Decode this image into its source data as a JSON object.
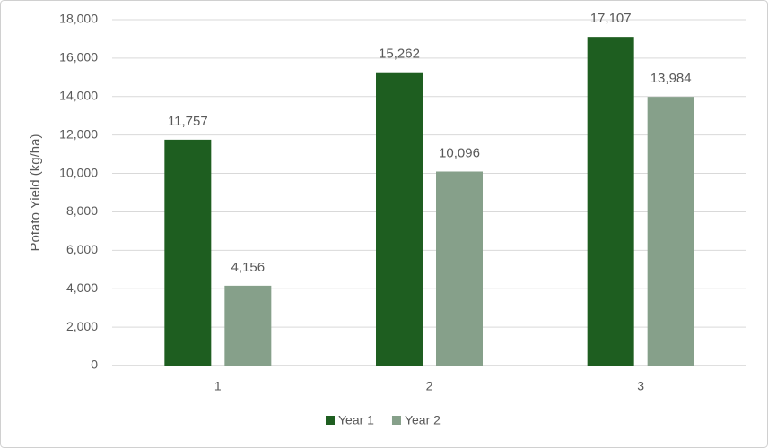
{
  "chart_data": {
    "type": "bar",
    "y_label": "Potato Yield (kg/ha)",
    "categories": [
      "1",
      "2",
      "3"
    ],
    "series": [
      {
        "name": "Year 1",
        "color": "#1e5e20",
        "values": [
          11757,
          15262,
          17107
        ],
        "value_labels": [
          "11,757",
          "15,262",
          "17,107"
        ]
      },
      {
        "name": "Year 2",
        "color": "#86a08a",
        "values": [
          4156,
          10096,
          13984
        ],
        "value_labels": [
          "4,156",
          "10,096",
          "13,984"
        ]
      }
    ],
    "ylim": [
      0,
      18000
    ],
    "yticks": [
      0,
      {
        "value": 2000,
        "label": "2,000"
      },
      {
        "value": 4000,
        "label": "4,000"
      },
      {
        "value": 6000,
        "label": "6,000"
      },
      {
        "value": 8000,
        "label": "8,000"
      },
      {
        "value": 10000,
        "label": "10,000"
      },
      {
        "value": 12000,
        "label": "12,000"
      },
      {
        "value": 14000,
        "label": "14,000"
      },
      {
        "value": 16000,
        "label": "16,000"
      },
      {
        "value": 18000,
        "label": "18,000"
      }
    ],
    "grid": true,
    "legend": "bottom"
  }
}
